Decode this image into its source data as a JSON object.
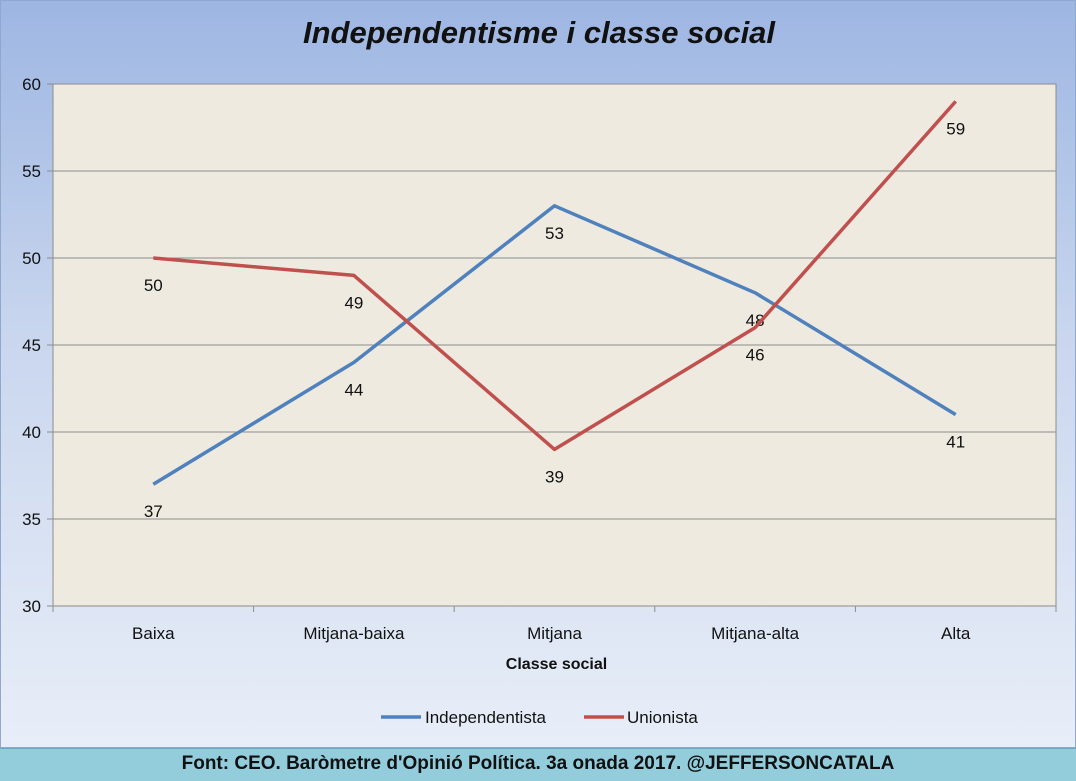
{
  "chart_data": {
    "type": "line",
    "title": "Independentisme i classe social",
    "xlabel": "Classe social",
    "ylabel": "",
    "categories": [
      "Baixa",
      "Mitjana-baixa",
      "Mitjana",
      "Mitjana-alta",
      "Alta"
    ],
    "ylim": [
      30,
      60
    ],
    "yticks": [
      30,
      35,
      40,
      45,
      50,
      55,
      60
    ],
    "grid": true,
    "legend_position": "bottom",
    "series": [
      {
        "name": "Independentista",
        "color": "#4f81bd",
        "values": [
          37,
          44,
          53,
          48,
          41
        ]
      },
      {
        "name": "Unionista",
        "color": "#c0504d",
        "values": [
          50,
          49,
          39,
          46,
          59
        ]
      }
    ]
  },
  "footer": {
    "source": "Font: CEO. Baròmetre d'Opinió Política. 3a onada 2017. @JEFFERSONCATALA"
  }
}
